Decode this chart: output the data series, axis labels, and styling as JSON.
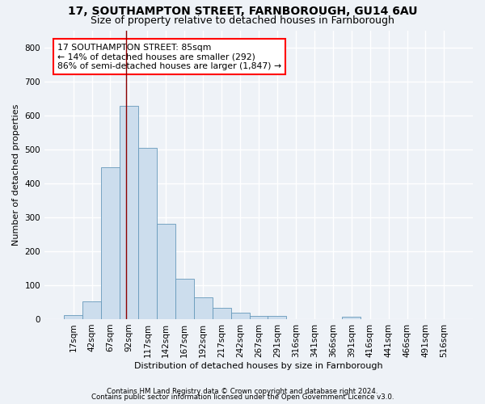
{
  "title": "17, SOUTHAMPTON STREET, FARNBOROUGH, GU14 6AU",
  "subtitle": "Size of property relative to detached houses in Farnborough",
  "xlabel": "Distribution of detached houses by size in Farnborough",
  "ylabel": "Number of detached properties",
  "bar_color": "#ccdded",
  "bar_edge_color": "#6699bb",
  "categories": [
    "17sqm",
    "42sqm",
    "67sqm",
    "92sqm",
    "117sqm",
    "142sqm",
    "167sqm",
    "192sqm",
    "217sqm",
    "242sqm",
    "267sqm",
    "291sqm",
    "316sqm",
    "341sqm",
    "366sqm",
    "391sqm",
    "416sqm",
    "441sqm",
    "466sqm",
    "491sqm",
    "516sqm"
  ],
  "values": [
    12,
    52,
    448,
    628,
    505,
    280,
    118,
    63,
    33,
    18,
    9,
    9,
    0,
    0,
    0,
    7,
    0,
    0,
    0,
    0,
    0
  ],
  "vline_x": 2.87,
  "annotation_line1": "17 SOUTHAMPTON STREET: 85sqm",
  "annotation_line2": "← 14% of detached houses are smaller (292)",
  "annotation_line3": "86% of semi-detached houses are larger (1,847) →",
  "ylim": [
    0,
    850
  ],
  "yticks": [
    0,
    100,
    200,
    300,
    400,
    500,
    600,
    700,
    800
  ],
  "footnote1": "Contains HM Land Registry data © Crown copyright and database right 2024.",
  "footnote2": "Contains public sector information licensed under the Open Government Licence v3.0.",
  "title_fontsize": 10,
  "subtitle_fontsize": 9,
  "axis_label_fontsize": 8,
  "tick_fontsize": 7.5,
  "background_color": "#eef2f7",
  "grid_color": "#ffffff"
}
